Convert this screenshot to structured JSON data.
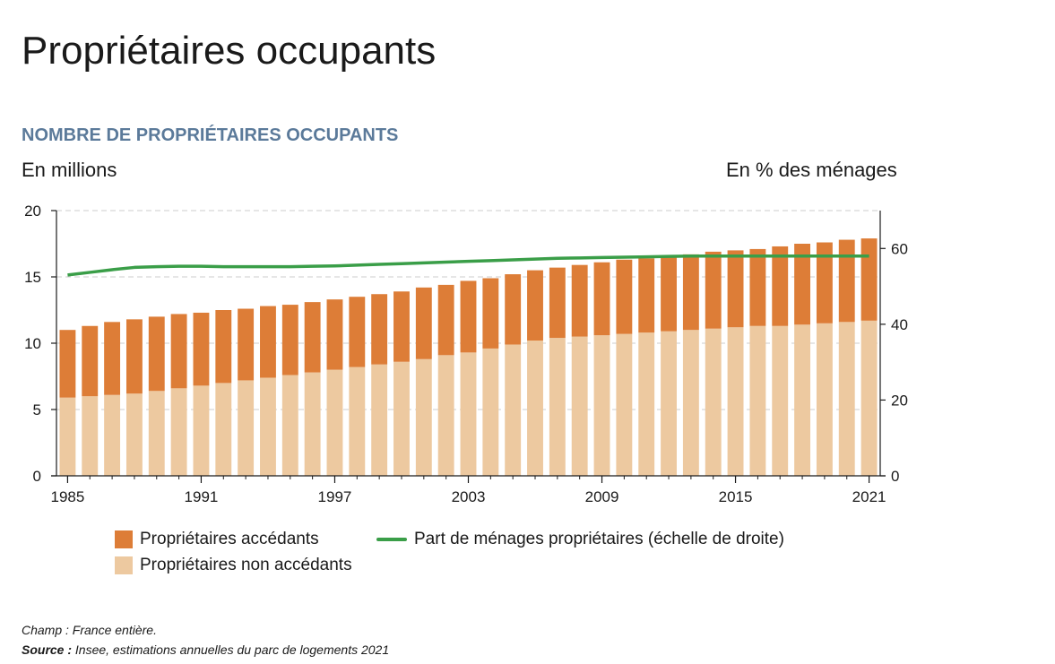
{
  "page_title": "Propriétaires occupants",
  "chart_data": {
    "type": "bar",
    "title": "NOMBRE DE PROPRIÉTAIRES OCCUPANTS",
    "ylabel": "En millions",
    "y2label": "En % des ménages",
    "ylim": [
      0,
      20
    ],
    "y2lim": [
      0,
      70
    ],
    "yticks": [
      0,
      5,
      10,
      15,
      20
    ],
    "y2ticks": [
      0,
      20,
      40,
      60
    ],
    "x": [
      1985,
      1986,
      1987,
      1988,
      1989,
      1990,
      1991,
      1992,
      1993,
      1994,
      1995,
      1996,
      1997,
      1998,
      1999,
      2000,
      2001,
      2002,
      2003,
      2004,
      2005,
      2006,
      2007,
      2008,
      2009,
      2010,
      2011,
      2012,
      2013,
      2014,
      2015,
      2016,
      2017,
      2018,
      2019,
      2020,
      2021
    ],
    "xticks": [
      "1985",
      "1991",
      "1997",
      "2003",
      "2009",
      "2015",
      "2021"
    ],
    "stacked": true,
    "grid": "horizontal dashed",
    "series": [
      {
        "name": "Propriétaires non accédants",
        "color": "#edc9a0",
        "axis": "left",
        "values": [
          5.9,
          6.0,
          6.1,
          6.2,
          6.4,
          6.6,
          6.8,
          7.0,
          7.2,
          7.4,
          7.6,
          7.8,
          8.0,
          8.2,
          8.4,
          8.6,
          8.8,
          9.1,
          9.3,
          9.6,
          9.9,
          10.2,
          10.4,
          10.5,
          10.6,
          10.7,
          10.8,
          10.9,
          11.0,
          11.1,
          11.2,
          11.3,
          11.3,
          11.4,
          11.5,
          11.6,
          11.7
        ]
      },
      {
        "name": "Propriétaires accédants",
        "color": "#dd7d37",
        "axis": "left",
        "values": [
          5.1,
          5.3,
          5.5,
          5.6,
          5.6,
          5.6,
          5.5,
          5.5,
          5.4,
          5.4,
          5.3,
          5.3,
          5.3,
          5.3,
          5.3,
          5.3,
          5.4,
          5.3,
          5.4,
          5.3,
          5.3,
          5.3,
          5.3,
          5.4,
          5.5,
          5.6,
          5.6,
          5.7,
          5.7,
          5.8,
          5.8,
          5.8,
          6.0,
          6.1,
          6.1,
          6.2,
          6.2
        ]
      },
      {
        "name": "Part de ménages propriétaires (échelle de droite)",
        "type": "line",
        "color": "#3a9e48",
        "axis": "right",
        "values": [
          53.0,
          53.7,
          54.4,
          55.0,
          55.2,
          55.3,
          55.3,
          55.2,
          55.2,
          55.2,
          55.2,
          55.3,
          55.4,
          55.6,
          55.8,
          56.0,
          56.2,
          56.4,
          56.6,
          56.8,
          57.0,
          57.2,
          57.4,
          57.5,
          57.6,
          57.7,
          57.8,
          57.9,
          58.0,
          58.0,
          58.0,
          58.0,
          58.0,
          58.0,
          58.0,
          58.0,
          58.0
        ]
      }
    ]
  },
  "notes": {
    "champ": "Champ : France entière.",
    "source_label": "Source :",
    "source_text": " Insee, estimations annuelles du parc de logements 2021"
  }
}
